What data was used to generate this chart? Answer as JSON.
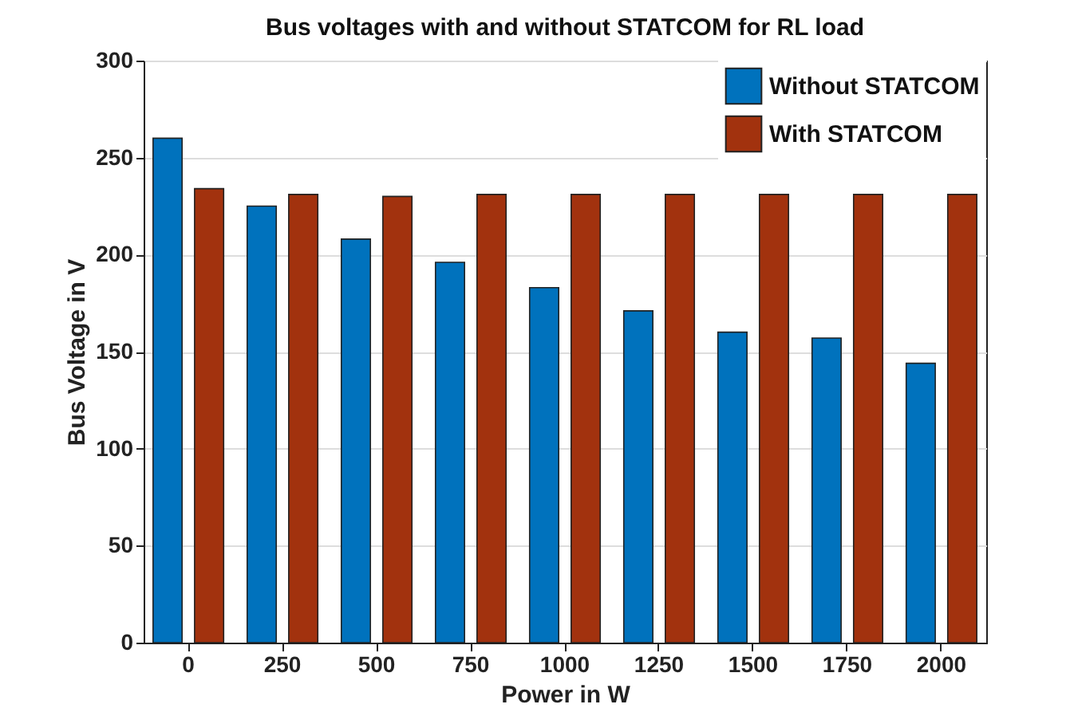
{
  "chart_data": {
    "type": "bar",
    "title": "Bus voltages with and without STATCOM for RL load",
    "xlabel": "Power in W",
    "ylabel": "Bus Voltage in V",
    "categories": [
      "0",
      "250",
      "500",
      "750",
      "1000",
      "1250",
      "1500",
      "1750",
      "2000"
    ],
    "series": [
      {
        "name": "Without STATCOM",
        "color": "#0072bd",
        "values": [
          260,
          225,
          208,
          196,
          183,
          171,
          160,
          157,
          144
        ]
      },
      {
        "name": "With STATCOM",
        "color": "#a2320e",
        "values": [
          234,
          231,
          230,
          231,
          231,
          231,
          231,
          231,
          231
        ]
      }
    ],
    "ylim": [
      0,
      300
    ],
    "yticks": [
      0,
      50,
      100,
      150,
      200,
      250,
      300
    ],
    "grid": "y",
    "legend": "top right"
  }
}
